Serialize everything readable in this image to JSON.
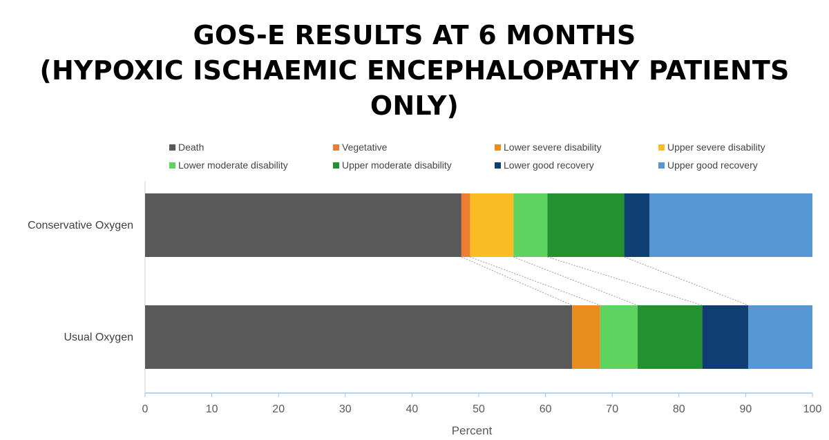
{
  "title_lines": [
    "GOS-E RESULTS AT 6 MONTHS",
    "(HYPOXIC ISCHAEMIC ENCEPHALOPATHY PATIENTS ONLY)"
  ],
  "chart_data": {
    "type": "bar",
    "orientation": "horizontal",
    "stacked": true,
    "categories": [
      "Conservative Oxygen",
      "Usual Oxygen"
    ],
    "series": [
      {
        "name": "Death",
        "color": "#595959",
        "values": [
          47.4,
          64.0
        ]
      },
      {
        "name": "Vegetative",
        "color": "#ED7D31",
        "values": [
          1.3,
          0
        ]
      },
      {
        "name": "Lower severe disability",
        "color": "#E98E1E",
        "values": [
          0,
          4.2
        ]
      },
      {
        "name": "Upper severe disability",
        "color": "#FBBC24",
        "values": [
          6.5,
          0
        ]
      },
      {
        "name": "Lower moderate disability",
        "color": "#5FD35F",
        "values": [
          5.1,
          5.6
        ]
      },
      {
        "name": "Upper moderate disability",
        "color": "#23912F",
        "values": [
          11.5,
          9.7
        ]
      },
      {
        "name": "Lower good recovery",
        "color": "#0F3E72",
        "values": [
          3.8,
          6.9
        ]
      },
      {
        "name": "Upper good recovery",
        "color": "#5796D4",
        "values": [
          24.4,
          9.6
        ]
      }
    ],
    "xlabel": "Percent",
    "xlim": [
      0,
      100
    ],
    "xticks": [
      0,
      10,
      20,
      30,
      40,
      50,
      60,
      70,
      80,
      90,
      100
    ],
    "legend_position": "top",
    "grid": false,
    "connector_lines": true
  }
}
